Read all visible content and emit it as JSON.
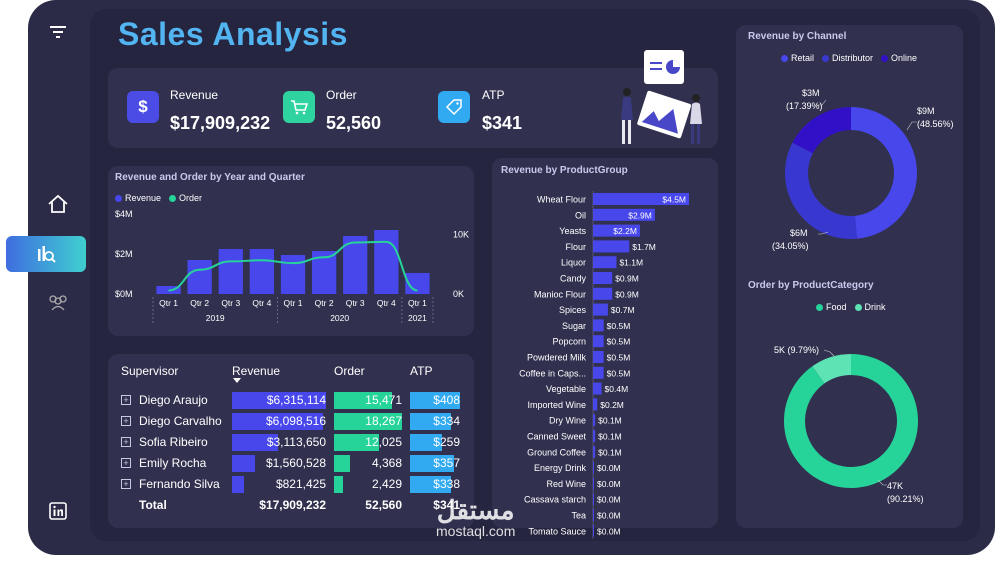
{
  "title": "Sales Analysis",
  "kpis": [
    {
      "label": "Revenue",
      "value": "$17,909,232",
      "icon": "dollar-icon",
      "symbol": "$",
      "color": "#4b4be6"
    },
    {
      "label": "Order",
      "value": "52,560",
      "icon": "cart-icon",
      "symbol": "🛒",
      "color": "#2ed3a0"
    },
    {
      "label": "ATP",
      "value": "$341",
      "icon": "price-tag-icon",
      "symbol": "🏷",
      "color": "#31aaf2"
    }
  ],
  "nav": [
    {
      "name": "menu-icon",
      "symbol": "≡"
    },
    {
      "name": "home-icon",
      "symbol": "⌂"
    },
    {
      "name": "analytics-icon",
      "symbol": "📊"
    },
    {
      "name": "users-icon",
      "symbol": "👥"
    },
    {
      "name": "linkedin-icon",
      "symbol": "in"
    }
  ],
  "charts": {
    "year_quarter": {
      "title": "Revenue and Order by Year and Quarter",
      "legend": [
        "Revenue",
        "Order"
      ],
      "y_left_ticks": [
        "$4M",
        "$2M",
        "$0M"
      ],
      "y_right_ticks": [
        "10K",
        "0K"
      ],
      "years": [
        "2019",
        "2020",
        "2021"
      ]
    },
    "product_group": {
      "title": "Revenue by ProductGroup"
    },
    "channel": {
      "title": "Revenue by Channel",
      "legend": [
        "Retail",
        "Distributor",
        "Online"
      ],
      "labels": [
        {
          "value": "$9M",
          "pct": "(48.56%)"
        },
        {
          "value": "$6M",
          "pct": "(34.05%)"
        },
        {
          "value": "$3M",
          "pct": "(17.39%)"
        }
      ]
    },
    "category": {
      "title": "Order by ProductCategory",
      "legend": [
        "Food",
        "Drink"
      ],
      "labels": [
        {
          "value": "47K",
          "pct": "(90.21%)"
        },
        {
          "value": "5K (9.79%)"
        }
      ]
    }
  },
  "table": {
    "headers": [
      "Supervisor",
      "Revenue",
      "Order",
      "ATP"
    ],
    "rows": [
      {
        "name": "Diego Araujo",
        "revenue": "$6,315,114",
        "order": "15,471",
        "atp": "$408"
      },
      {
        "name": "Diego Carvalho",
        "revenue": "$6,098,516",
        "order": "18,267",
        "atp": "$334"
      },
      {
        "name": "Sofia Ribeiro",
        "revenue": "$3,113,650",
        "order": "12,025",
        "atp": "$259"
      },
      {
        "name": "Emily Rocha",
        "revenue": "$1,560,528",
        "order": "4,368",
        "atp": "$357"
      },
      {
        "name": "Fernando Silva",
        "revenue": "$821,425",
        "order": "2,429",
        "atp": "$338"
      }
    ],
    "total": {
      "label": "Total",
      "revenue": "$17,909,232",
      "order": "52,560",
      "atp": "$341"
    },
    "bar_fractions": {
      "revenue": [
        1.0,
        0.966,
        0.493,
        0.247,
        0.13
      ],
      "order": [
        0.847,
        1.0,
        0.658,
        0.239,
        0.133
      ],
      "atp": [
        1.0,
        0.819,
        0.635,
        0.875,
        0.828
      ]
    }
  },
  "watermark": {
    "arabic": "مستقل",
    "latin": "mostaql.com"
  },
  "chart_data": [
    {
      "type": "bar",
      "title": "Revenue and Order by Year and Quarter",
      "categories": [
        "Qtr 1 2019",
        "Qtr 2 2019",
        "Qtr 3 2019",
        "Qtr 4 2019",
        "Qtr 1 2020",
        "Qtr 2 2020",
        "Qtr 3 2020",
        "Qtr 4 2020",
        "Qtr 1 2021"
      ],
      "tick_labels": [
        "Qtr 1",
        "Qtr 2",
        "Qtr 3",
        "Qtr 4",
        "Qtr 1",
        "Qtr 2",
        "Qtr 3",
        "Qtr 4",
        "Qtr 1"
      ],
      "series": [
        {
          "name": "Revenue",
          "type": "bar",
          "values": [
            0.4,
            1.7,
            2.25,
            2.25,
            1.95,
            2.15,
            2.9,
            3.2,
            1.05
          ]
        },
        {
          "name": "Order",
          "type": "line",
          "values": [
            600,
            4100,
            5500,
            5700,
            5200,
            6200,
            8700,
            8800,
            600
          ]
        }
      ],
      "ylim": [
        0,
        4
      ],
      "y2lim": [
        0,
        13500
      ]
    },
    {
      "type": "bar",
      "orientation": "horizontal",
      "title": "Revenue by ProductGroup",
      "categories": [
        "Wheat Flour",
        "Oil",
        "Yeasts",
        "Flour",
        "Liquor",
        "Candy",
        "Manioc Flour",
        "Spices",
        "Sugar",
        "Popcorn",
        "Powdered Milk",
        "Coffee in Caps...",
        "Vegetable",
        "Imported Wine",
        "Dry Wine",
        "Canned Sweet",
        "Ground Coffee",
        "Energy Drink",
        "Red Wine",
        "Cassava starch",
        "Tea",
        "Tomato Sauce"
      ],
      "labels": [
        "$4.5M",
        "$2.9M",
        "$2.2M",
        "$1.7M",
        "$1.1M",
        "$0.9M",
        "$0.9M",
        "$0.7M",
        "$0.5M",
        "$0.5M",
        "$0.5M",
        "$0.5M",
        "$0.4M",
        "$0.2M",
        "$0.1M",
        "$0.1M",
        "$0.1M",
        "$0.0M",
        "$0.0M",
        "$0.0M",
        "$0.0M",
        "$0.0M"
      ],
      "values": [
        4.5,
        2.9,
        2.2,
        1.7,
        1.1,
        0.9,
        0.9,
        0.7,
        0.5,
        0.5,
        0.5,
        0.5,
        0.4,
        0.2,
        0.1,
        0.1,
        0.1,
        0.03,
        0.03,
        0.02,
        0.02,
        0.01
      ]
    },
    {
      "type": "pie",
      "title": "Revenue by Channel",
      "categories": [
        "Retail",
        "Distributor",
        "Online"
      ],
      "values": [
        48.56,
        34.05,
        17.39
      ],
      "colors": [
        "#4747ec",
        "#3838d0",
        "#3210c8"
      ]
    },
    {
      "type": "pie",
      "title": "Order by ProductCategory",
      "categories": [
        "Food",
        "Drink"
      ],
      "values": [
        90.21,
        9.79
      ],
      "colors": [
        "#26d398",
        "#5ee3b4"
      ]
    }
  ]
}
